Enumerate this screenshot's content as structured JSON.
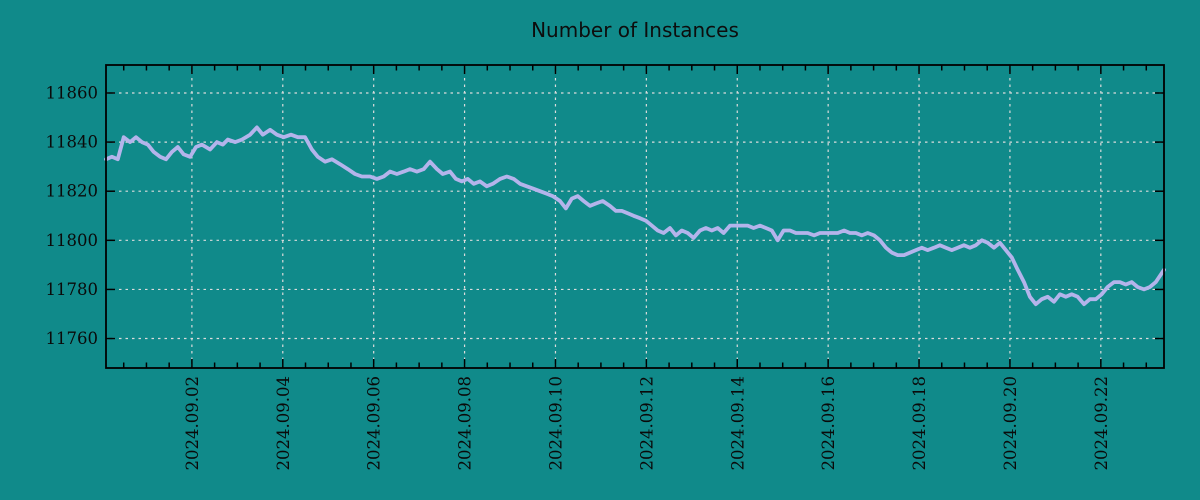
{
  "window": {
    "background_color": "#108a8a"
  },
  "colors": {
    "background": "#108a8a",
    "series_line": "#b4b4eb",
    "gridline": "#dcdcdc",
    "axis": "#000000",
    "text": "#0a0a0a"
  },
  "chart_data": {
    "type": "line",
    "title": "Number of Instances",
    "xlabel": "",
    "ylabel": "",
    "grid": "dashed-major-both-axes",
    "legend": false,
    "x_axis": {
      "tick_labels": [
        "2024.09.02",
        "2024.09.04",
        "2024.09.06",
        "2024.09.08",
        "2024.09.10",
        "2024.09.12",
        "2024.09.14",
        "2024.09.16",
        "2024.09.18",
        "2024.09.20",
        "2024.09.22"
      ],
      "tick_positions_days": [
        1,
        3,
        5,
        7,
        9,
        11,
        13,
        15,
        17,
        19,
        21
      ],
      "minor_tick_interval_days": 0.5,
      "xlim_days": [
        -0.89,
        22.39
      ],
      "labels_rotated_degrees": 90
    },
    "y_axis": {
      "ticks": [
        11760,
        11780,
        11800,
        11820,
        11840,
        11860
      ],
      "ylim": [
        11748,
        11871.4
      ]
    },
    "series": [
      {
        "name": "instances",
        "color": "#b4b4eb",
        "points": [
          [
            -0.89,
            11833
          ],
          [
            -0.76,
            11834
          ],
          [
            -0.63,
            11833
          ],
          [
            -0.5,
            11842
          ],
          [
            -0.36,
            11840
          ],
          [
            -0.23,
            11842
          ],
          [
            -0.1,
            11840
          ],
          [
            0.03,
            11839
          ],
          [
            0.16,
            11836
          ],
          [
            0.3,
            11834
          ],
          [
            0.43,
            11833
          ],
          [
            0.56,
            11836
          ],
          [
            0.69,
            11838
          ],
          [
            0.82,
            11835
          ],
          [
            0.96,
            11834
          ],
          [
            1.09,
            11838
          ],
          [
            1.22,
            11839
          ],
          [
            1.4,
            11837
          ],
          [
            1.55,
            11840
          ],
          [
            1.68,
            11839
          ],
          [
            1.79,
            11841
          ],
          [
            1.95,
            11840
          ],
          [
            2.1,
            11841
          ],
          [
            2.28,
            11843
          ],
          [
            2.43,
            11846
          ],
          [
            2.56,
            11843
          ],
          [
            2.72,
            11845
          ],
          [
            2.87,
            11843
          ],
          [
            3.02,
            11842
          ],
          [
            3.18,
            11843
          ],
          [
            3.33,
            11842
          ],
          [
            3.49,
            11842
          ],
          [
            3.64,
            11837
          ],
          [
            3.77,
            11834
          ],
          [
            3.93,
            11832
          ],
          [
            4.08,
            11833
          ],
          [
            4.26,
            11831
          ],
          [
            4.43,
            11829
          ],
          [
            4.59,
            11827
          ],
          [
            4.74,
            11826
          ],
          [
            4.92,
            11826
          ],
          [
            5.07,
            11825
          ],
          [
            5.22,
            11826
          ],
          [
            5.36,
            11828
          ],
          [
            5.51,
            11827
          ],
          [
            5.66,
            11828
          ],
          [
            5.8,
            11829
          ],
          [
            5.95,
            11828
          ],
          [
            6.1,
            11829
          ],
          [
            6.24,
            11832
          ],
          [
            6.39,
            11829
          ],
          [
            6.52,
            11827
          ],
          [
            6.68,
            11828
          ],
          [
            6.81,
            11825
          ],
          [
            6.94,
            11824
          ],
          [
            7.07,
            11825
          ],
          [
            7.2,
            11823
          ],
          [
            7.34,
            11824
          ],
          [
            7.49,
            11822
          ],
          [
            7.62,
            11823
          ],
          [
            7.78,
            11825
          ],
          [
            7.93,
            11826
          ],
          [
            8.08,
            11825
          ],
          [
            8.22,
            11823
          ],
          [
            8.37,
            11822
          ],
          [
            8.52,
            11821
          ],
          [
            8.66,
            11820
          ],
          [
            8.81,
            11819
          ],
          [
            8.94,
            11818
          ],
          [
            9.1,
            11816
          ],
          [
            9.23,
            11813
          ],
          [
            9.36,
            11817
          ],
          [
            9.49,
            11818
          ],
          [
            9.62,
            11816
          ],
          [
            9.76,
            11814
          ],
          [
            9.89,
            11815
          ],
          [
            10.04,
            11816
          ],
          [
            10.2,
            11814
          ],
          [
            10.33,
            11812
          ],
          [
            10.46,
            11812
          ],
          [
            10.59,
            11811
          ],
          [
            10.72,
            11810
          ],
          [
            10.86,
            11809
          ],
          [
            10.99,
            11808
          ],
          [
            11.12,
            11806
          ],
          [
            11.25,
            11804
          ],
          [
            11.38,
            11803
          ],
          [
            11.52,
            11805
          ],
          [
            11.65,
            11802
          ],
          [
            11.78,
            11804
          ],
          [
            11.91,
            11803
          ],
          [
            12.04,
            11801
          ],
          [
            12.18,
            11804
          ],
          [
            12.31,
            11805
          ],
          [
            12.44,
            11804
          ],
          [
            12.57,
            11805
          ],
          [
            12.7,
            11803
          ],
          [
            12.84,
            11806
          ],
          [
            12.97,
            11806
          ],
          [
            13.1,
            11806
          ],
          [
            13.23,
            11806
          ],
          [
            13.36,
            11805
          ],
          [
            13.5,
            11806
          ],
          [
            13.63,
            11805
          ],
          [
            13.76,
            11804
          ],
          [
            13.89,
            11800
          ],
          [
            14.02,
            11804
          ],
          [
            14.16,
            11804
          ],
          [
            14.29,
            11803
          ],
          [
            14.42,
            11803
          ],
          [
            14.55,
            11803
          ],
          [
            14.69,
            11802
          ],
          [
            14.82,
            11803
          ],
          [
            14.95,
            11803
          ],
          [
            15.08,
            11803
          ],
          [
            15.21,
            11803
          ],
          [
            15.35,
            11804
          ],
          [
            15.48,
            11803
          ],
          [
            15.61,
            11803
          ],
          [
            15.74,
            11802
          ],
          [
            15.87,
            11803
          ],
          [
            16.01,
            11802
          ],
          [
            16.14,
            11800
          ],
          [
            16.27,
            11797
          ],
          [
            16.4,
            11795
          ],
          [
            16.53,
            11794
          ],
          [
            16.67,
            11794
          ],
          [
            16.8,
            11795
          ],
          [
            16.93,
            11796
          ],
          [
            17.06,
            11797
          ],
          [
            17.19,
            11796
          ],
          [
            17.33,
            11797
          ],
          [
            17.46,
            11798
          ],
          [
            17.59,
            11797
          ],
          [
            17.72,
            11796
          ],
          [
            17.85,
            11797
          ],
          [
            17.99,
            11798
          ],
          [
            18.12,
            11797
          ],
          [
            18.25,
            11798
          ],
          [
            18.38,
            11800
          ],
          [
            18.51,
            11799
          ],
          [
            18.65,
            11797
          ],
          [
            18.78,
            11799
          ],
          [
            18.91,
            11796
          ],
          [
            19.04,
            11793
          ],
          [
            19.17,
            11788
          ],
          [
            19.31,
            11783
          ],
          [
            19.44,
            11777
          ],
          [
            19.57,
            11774
          ],
          [
            19.7,
            11776
          ],
          [
            19.83,
            11777
          ],
          [
            19.97,
            11775
          ],
          [
            20.1,
            11778
          ],
          [
            20.23,
            11777
          ],
          [
            20.36,
            11778
          ],
          [
            20.49,
            11777
          ],
          [
            20.63,
            11774
          ],
          [
            20.76,
            11776
          ],
          [
            20.89,
            11776
          ],
          [
            21.02,
            11778
          ],
          [
            21.15,
            11781
          ],
          [
            21.29,
            11783
          ],
          [
            21.42,
            11783
          ],
          [
            21.55,
            11782
          ],
          [
            21.68,
            11783
          ],
          [
            21.81,
            11781
          ],
          [
            21.95,
            11780
          ],
          [
            22.08,
            11781
          ],
          [
            22.21,
            11783
          ],
          [
            22.39,
            11788
          ]
        ]
      }
    ]
  }
}
